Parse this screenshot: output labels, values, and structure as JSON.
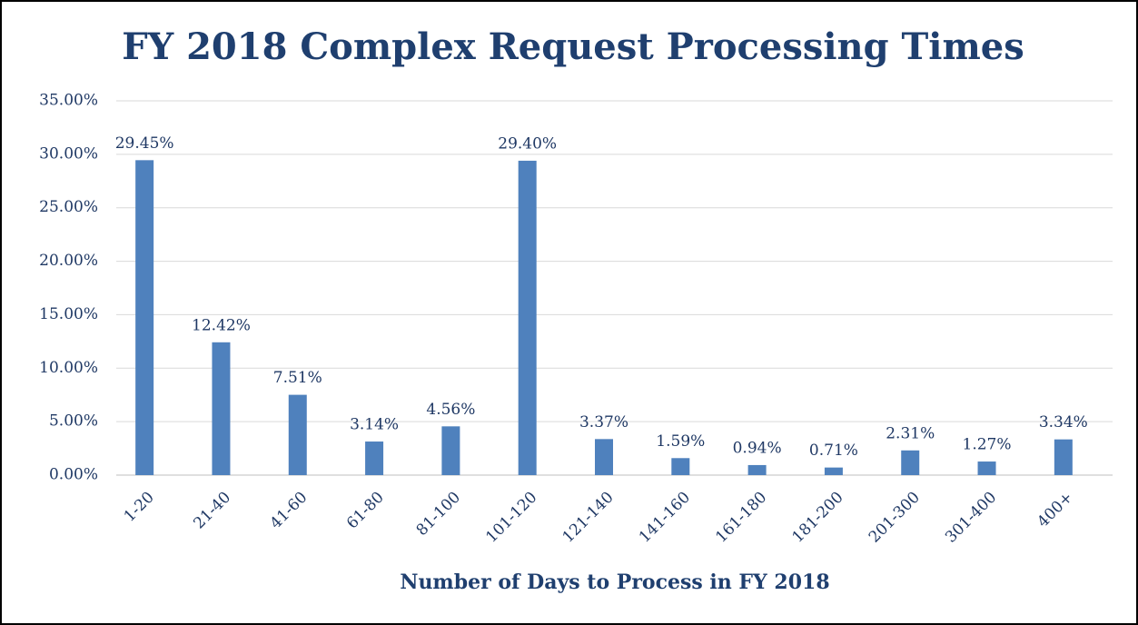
{
  "chart_data": {
    "type": "bar",
    "title": "FY 2018 Complex Request Processing Times",
    "x_label": "Number of Days to Process in FY 2018",
    "categories": [
      "1-20",
      "21-40",
      "41-60",
      "61-80",
      "81-100",
      "101-120",
      "121-140",
      "141-160",
      "161-180",
      "181-200",
      "201-300",
      "301-400",
      "400+"
    ],
    "values": [
      29.45,
      12.42,
      7.51,
      3.14,
      4.56,
      29.4,
      3.37,
      1.59,
      0.94,
      0.71,
      2.31,
      1.27,
      3.34
    ],
    "value_labels": [
      "29.45%",
      "12.42%",
      "7.51%",
      "3.14%",
      "4.56%",
      "29.40%",
      "3.37%",
      "1.59%",
      "0.94%",
      "0.71%",
      "2.31%",
      "1.27%",
      "3.34%"
    ],
    "color": "#4f81bd",
    "ylim": [
      0,
      35
    ],
    "yticks": [
      {
        "value": 0,
        "label": "0.00%"
      },
      {
        "value": 5,
        "label": "5.00%"
      },
      {
        "value": 10,
        "label": "10.00%"
      },
      {
        "value": 15,
        "label": "15.00%"
      },
      {
        "value": 20,
        "label": "20.00%"
      },
      {
        "value": 25,
        "label": "25.00%"
      },
      {
        "value": 30,
        "label": "30.00%"
      },
      {
        "value": 35,
        "label": "35.00%"
      }
    ],
    "grid": true
  }
}
